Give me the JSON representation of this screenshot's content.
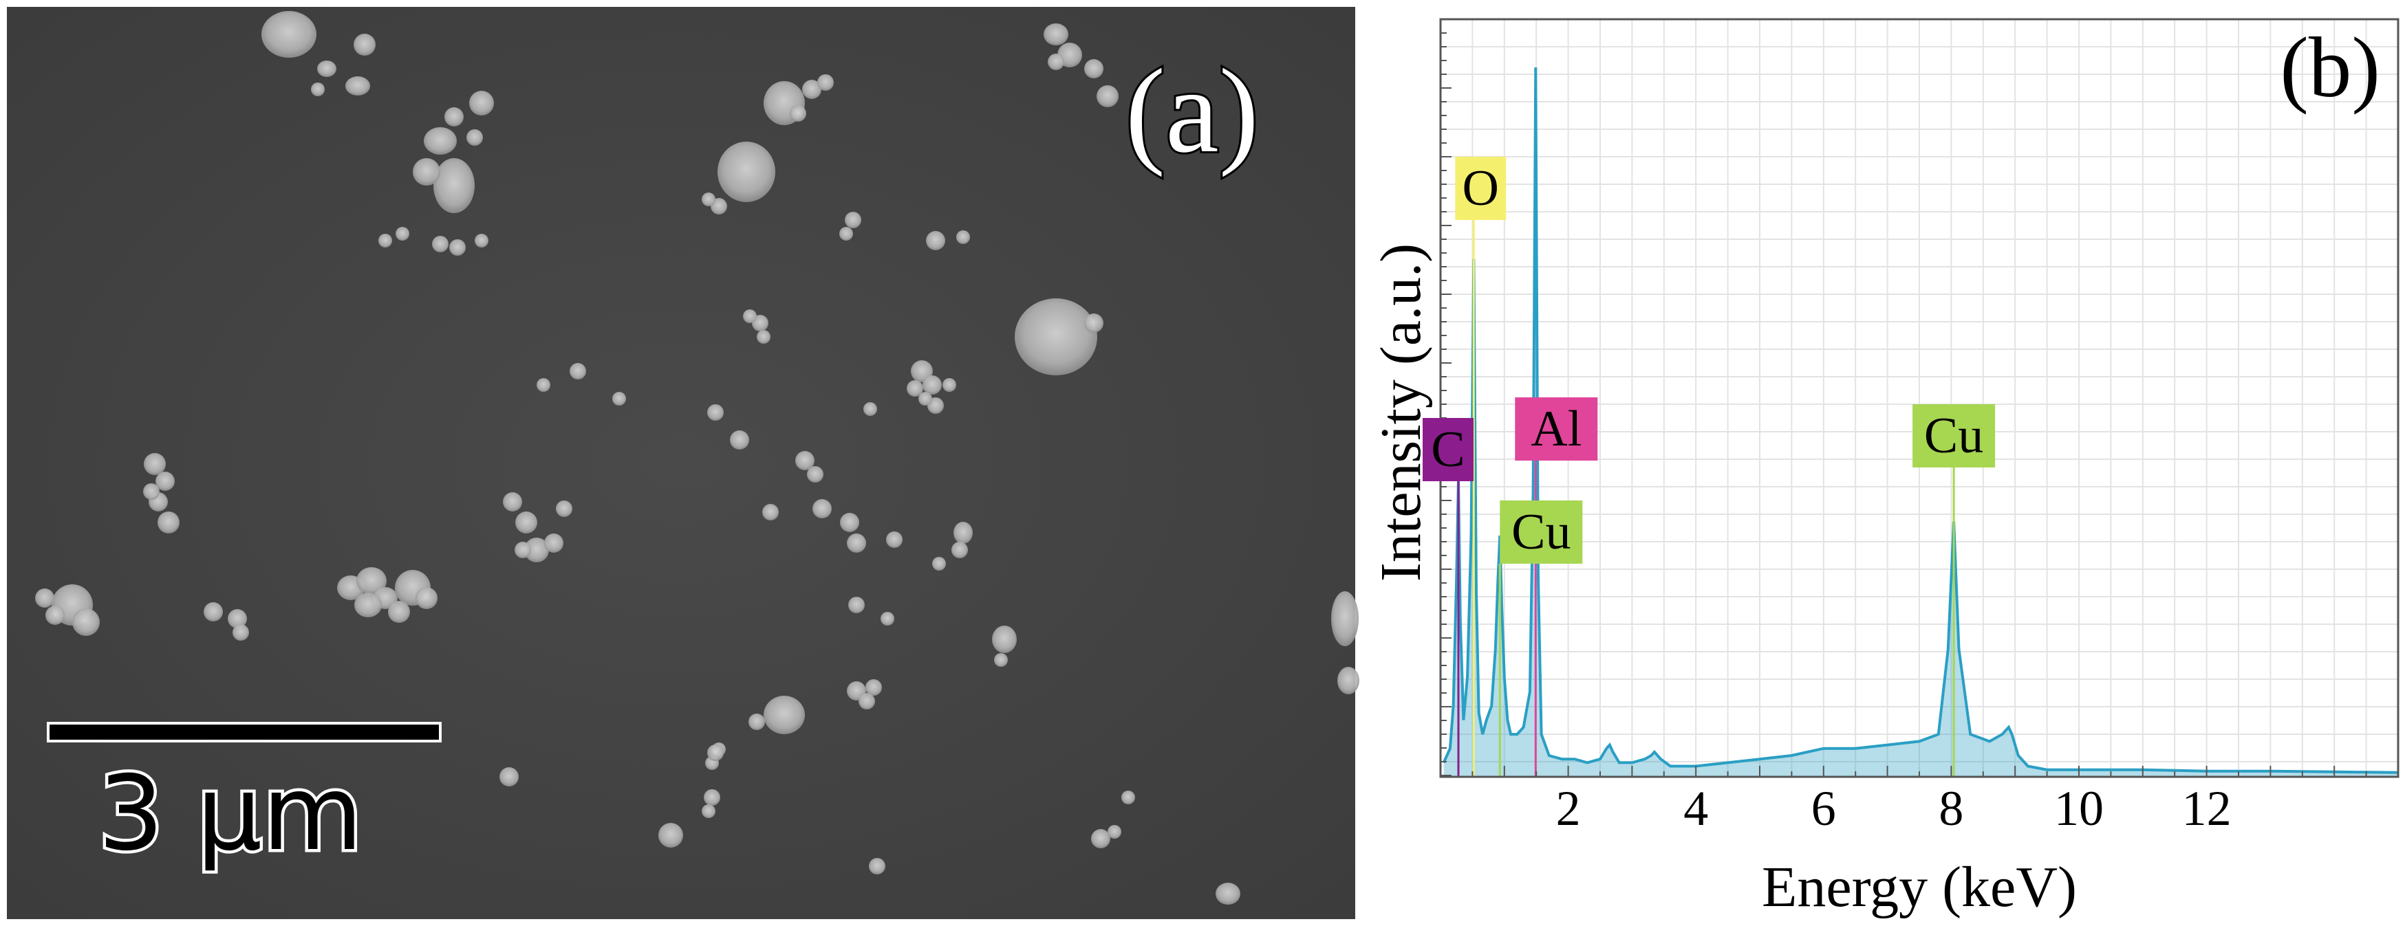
{
  "panel_a": {
    "label": "(a)",
    "scale_bar_label": "3 µm"
  },
  "chart_data": {
    "type": "line",
    "panel_label": "(b)",
    "xlabel": "Energy (keV)",
    "ylabel": "Intensity (a.u.)",
    "xlim": [
      0,
      15
    ],
    "ylim": [
      0,
      100
    ],
    "xticks": [
      2,
      4,
      6,
      8,
      10,
      12
    ],
    "grid": true,
    "colors": {
      "spectrum": "#2a9fc4",
      "O": "#f5ef6e",
      "C": "#8b1e8c",
      "Al": "#e0459a",
      "Cu": "#a7d651"
    },
    "peak_labels": [
      {
        "element": "O",
        "energy": 0.52
      },
      {
        "element": "C",
        "energy": 0.28
      },
      {
        "element": "Al",
        "energy": 1.49
      },
      {
        "element": "Cu",
        "energy": 0.93
      },
      {
        "element": "Cu",
        "energy": 8.04
      }
    ],
    "series": [
      {
        "x": [
          0.05,
          0.15,
          0.2,
          0.25,
          0.28,
          0.31,
          0.36,
          0.42,
          0.48,
          0.52,
          0.56,
          0.6,
          0.66,
          0.72,
          0.8,
          0.86,
          0.9,
          0.93,
          0.96,
          1.0,
          1.05,
          1.1,
          1.2,
          1.3,
          1.4,
          1.45,
          1.49,
          1.53,
          1.58,
          1.7,
          1.9,
          2.1,
          2.3,
          2.5,
          2.6,
          2.65,
          2.7,
          2.8,
          3.0,
          3.2,
          3.3,
          3.35,
          3.45,
          3.6,
          4.0,
          4.5,
          5.0,
          5.5,
          6.0,
          6.5,
          7.0,
          7.5,
          7.8,
          7.95,
          8.04,
          8.12,
          8.3,
          8.6,
          8.8,
          8.9,
          8.95,
          9.05,
          9.2,
          9.5,
          10,
          11,
          12,
          13,
          14,
          15
        ],
        "y": [
          2,
          4,
          10,
          28,
          42,
          22,
          8,
          14,
          34,
          73,
          26,
          9,
          6,
          8,
          10,
          18,
          28,
          34,
          24,
          14,
          8,
          6,
          6,
          7,
          12,
          40,
          100,
          28,
          6,
          3,
          2.5,
          2.5,
          2,
          2.5,
          4,
          4.5,
          3.5,
          2,
          2,
          2.5,
          3,
          3.5,
          2.5,
          1.5,
          1.5,
          2,
          2.5,
          3,
          4,
          4,
          4.5,
          5,
          6,
          18,
          36,
          18,
          6,
          5,
          6,
          7,
          6,
          3,
          1.5,
          1,
          1,
          1,
          0.8,
          0.8,
          0.7,
          0.6
        ]
      }
    ]
  }
}
